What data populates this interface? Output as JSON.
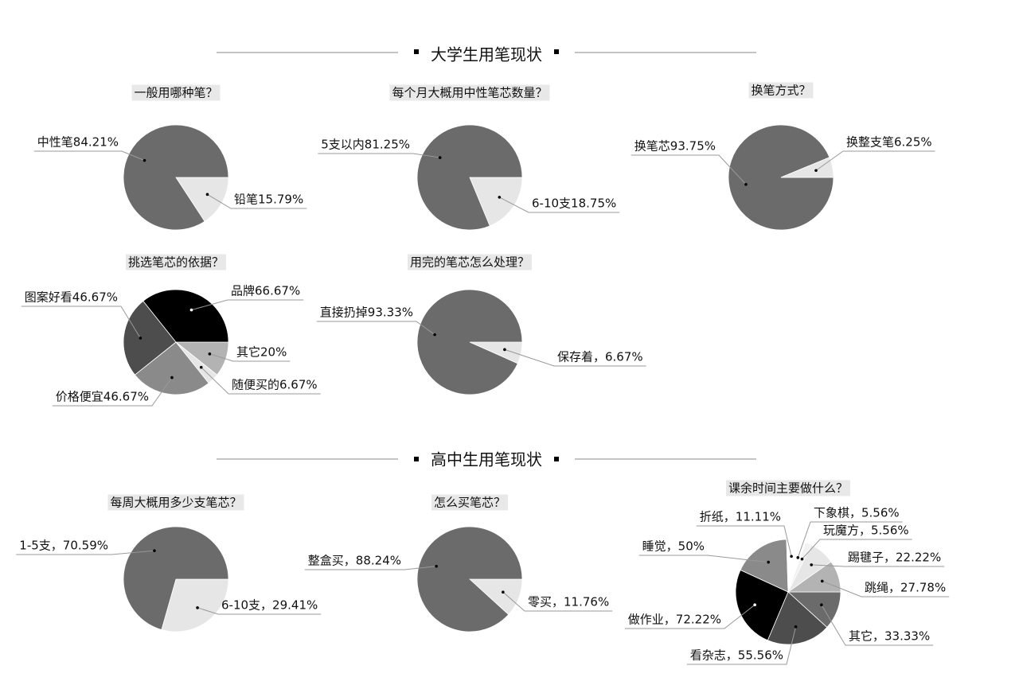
{
  "sections": [
    "大学生用笔现状",
    "高中生用笔现状"
  ],
  "chart_data": [
    {
      "type": "pie",
      "title": "一般用哪种笔？",
      "values": [
        15.79,
        84.21
      ],
      "value_labels": [
        "铅笔15.79%",
        "中性笔84.21%"
      ],
      "colors": [
        "#e6e6e6",
        "#6b6b6b"
      ]
    },
    {
      "type": "pie",
      "title": "每个月大概用中性笔芯数量？",
      "values": [
        18.75,
        81.25
      ],
      "value_labels": [
        "6-10支18.75%",
        "5支以内81.25%"
      ],
      "colors": [
        "#e6e6e6",
        "#6b6b6b"
      ]
    },
    {
      "type": "pie",
      "title": "换笔方式？",
      "values": [
        93.75,
        6.25
      ],
      "value_labels": [
        "换笔芯93.75%",
        "换整支笔6.25%"
      ],
      "colors": [
        "#6b6b6b",
        "#e6e6e6"
      ]
    },
    {
      "type": "pie",
      "title": "挑选笔芯的依据？",
      "values": [
        20,
        6.67,
        46.67,
        46.67,
        66.67
      ],
      "value_labels": [
        "其它20%",
        "随便买的6.67%",
        "价格便宜46.67%",
        "图案好看46.67%",
        "品牌66.67%"
      ],
      "colors": [
        "#b3b3b3",
        "#e6e6e6",
        "#8a8a8a",
        "#4d4d4d",
        "#000000"
      ]
    },
    {
      "type": "pie",
      "title": "用完的笔芯怎么处理？",
      "values": [
        6.67,
        93.33
      ],
      "value_labels": [
        "保存着，6.67%",
        "直接扔掉93.33%"
      ],
      "colors": [
        "#e6e6e6",
        "#6b6b6b"
      ]
    },
    {
      "type": "pie",
      "title": "每周大概用多少支笔芯？",
      "values": [
        29.41,
        70.59
      ],
      "value_labels": [
        "6-10支，29.41%",
        "1-5支，70.59%"
      ],
      "colors": [
        "#e6e6e6",
        "#6b6b6b"
      ]
    },
    {
      "type": "pie",
      "title": "怎么买笔芯？",
      "values": [
        11.76,
        88.24
      ],
      "value_labels": [
        "零买，11.76%",
        "整盒买，88.24%"
      ],
      "colors": [
        "#e6e6e6",
        "#6b6b6b"
      ]
    },
    {
      "type": "pie",
      "title": "课余时间主要做什么？",
      "values": [
        33.33,
        55.56,
        72.22,
        50,
        11.11,
        5.56,
        5.56,
        22.22,
        27.78
      ],
      "value_labels": [
        "其它，33.33%",
        "看杂志，55.56%",
        "做作业，72.22%",
        "睡觉，50%",
        "折纸，11.11%",
        "下象棋，5.56%",
        "玩魔方，5.56%",
        "踢毽子，22.22%",
        "跳绳，27.78%"
      ],
      "colors": [
        "#6b6b6b",
        "#4d4d4d",
        "#000000",
        "#8a8a8a",
        "#ffffff",
        "#ffffff",
        "#f2f2f2",
        "#e6e6e6",
        "#b3b3b3"
      ]
    }
  ]
}
